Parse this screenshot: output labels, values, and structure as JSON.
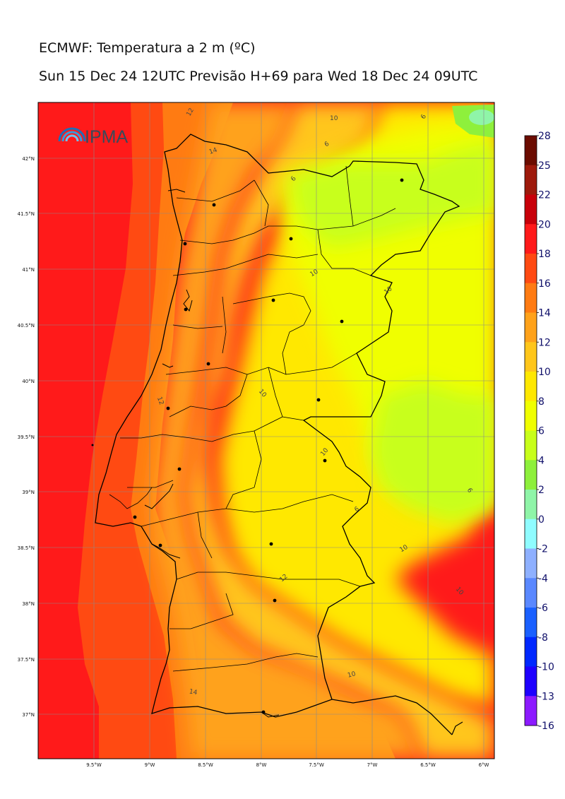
{
  "title": "ECMWF: Temperatura a 2 m (ºC)",
  "subtitle": "Sun 15 Dec 24 12UTC Previsão H+69 para Wed 18 Dec 24 09UTC",
  "logo_text": "IPMA",
  "lat_labels": [
    "42°N",
    "41.5°N",
    "41°N",
    "40.5°N",
    "40°N",
    "39.5°N",
    "39°N",
    "38.5°N",
    "38°N",
    "37.5°N",
    "37°N"
  ],
  "lon_labels": [
    "9.5°W",
    "9°W",
    "8.5°W",
    "8°W",
    "7.5°W",
    "7°W",
    "6.5°W",
    "6°W"
  ],
  "colorbar": {
    "labels": [
      "28",
      "25",
      "22",
      "20",
      "18",
      "16",
      "14",
      "12",
      "10",
      "8",
      "6",
      "4",
      "2",
      "0",
      "-2",
      "-4",
      "-6",
      "-8",
      "-10",
      "-13",
      "-16"
    ],
    "colors": [
      "#6b0c00",
      "#9e1a0c",
      "#c8000a",
      "#ff1a1a",
      "#ff4a12",
      "#ff7b12",
      "#ffa21a",
      "#ffc61a",
      "#ffe800",
      "#f0ff00",
      "#c8ff1a",
      "#8ef03c",
      "#8ff5a8",
      "#8ffcff",
      "#8eb0ff",
      "#5a88ff",
      "#1a60ff",
      "#0028ff",
      "#1e00ff",
      "#8c1aff",
      "#e11aff"
    ]
  },
  "contour_labels": [
    "12",
    "10",
    "6",
    "14",
    "6",
    "6",
    "10",
    "10",
    "12",
    "10",
    "10",
    "6",
    "6",
    "10",
    "10",
    "12",
    "10",
    "14"
  ],
  "colors": {
    "sea": "#ff1a1a",
    "sea_inner": "#ff4a12",
    "coast": "#ff7b12",
    "land_warm": "#ffa21a",
    "land": "#ffc61a",
    "land_mid": "#ffe800",
    "land_cool": "#f0ff00",
    "land_cold": "#c8ff1a"
  }
}
